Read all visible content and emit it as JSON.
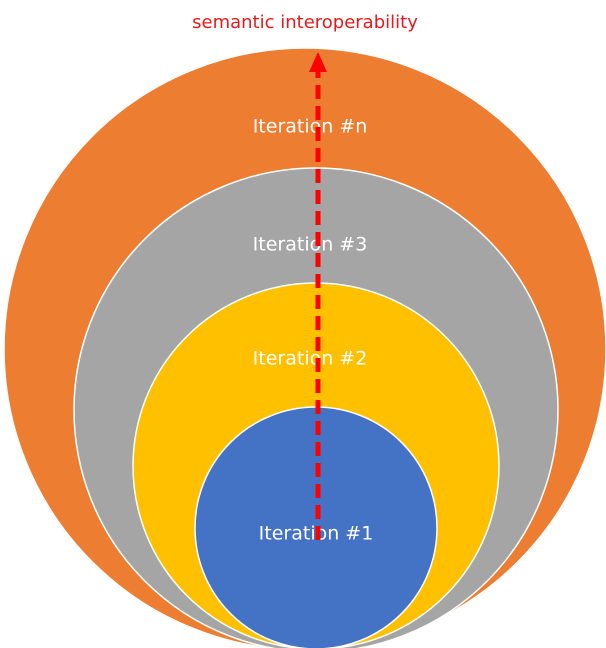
{
  "title": "semantic interoperability",
  "iterations": [
    {
      "label": "Iteration #n"
    },
    {
      "label": "Iteration #3"
    },
    {
      "label": "Iteration #2"
    },
    {
      "label": "Iteration #1"
    }
  ]
}
